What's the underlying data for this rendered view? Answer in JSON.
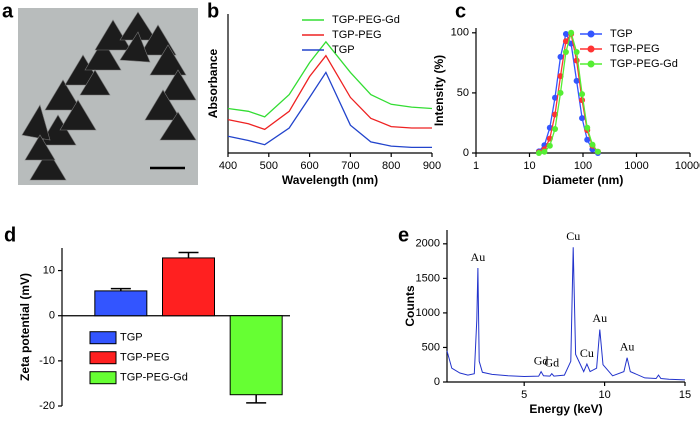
{
  "chart_data": [
    {
      "type": "image",
      "panel": "a"
    },
    {
      "type": "line",
      "panel": "b",
      "xlabel": "Wavelength (nm)",
      "ylabel": "Absorbance",
      "x": [
        400,
        450,
        490,
        550,
        600,
        640,
        700,
        750,
        800,
        850,
        900
      ],
      "xlim": [
        400,
        900
      ],
      "xticks": [
        400,
        500,
        600,
        700,
        800,
        900
      ],
      "ylim": [
        0,
        1
      ],
      "legend": "upper right",
      "series": [
        {
          "name": "TGP-PEG-Gd",
          "color": "#33dd33",
          "values": [
            0.32,
            0.3,
            0.26,
            0.42,
            0.65,
            0.8,
            0.58,
            0.42,
            0.35,
            0.33,
            0.32
          ]
        },
        {
          "name": "TGP-PEG",
          "color": "#ee2222",
          "values": [
            0.24,
            0.21,
            0.17,
            0.3,
            0.55,
            0.7,
            0.4,
            0.25,
            0.19,
            0.18,
            0.18
          ]
        },
        {
          "name": "TGP",
          "color": "#2244cc",
          "values": [
            0.12,
            0.09,
            0.06,
            0.18,
            0.4,
            0.58,
            0.2,
            0.08,
            0.05,
            0.04,
            0.04
          ]
        }
      ]
    },
    {
      "type": "scatter-line",
      "panel": "c",
      "xlabel": "Diameter (nm)",
      "ylabel": "Intensity (%)",
      "xscale": "log",
      "x": [
        15,
        19,
        24,
        30,
        38,
        48,
        60,
        76,
        96,
        120,
        150,
        190
      ],
      "xlim": [
        1,
        10000
      ],
      "xticks": [
        1,
        10,
        100,
        1000,
        10000
      ],
      "ylim": [
        0,
        104
      ],
      "yticks": [
        0,
        50,
        100
      ],
      "legend": "upper right",
      "series": [
        {
          "name": "TGP",
          "color": "#3355ff",
          "values": [
            1.4,
            6.5,
            21,
            46,
            80,
            99,
            91,
            60,
            29,
            11,
            3,
            0
          ]
        },
        {
          "name": "TGP-PEG",
          "color": "#ff3333",
          "values": [
            0.6,
            3,
            12,
            32,
            64,
            93,
            99,
            77,
            44,
            19,
            6,
            1
          ]
        },
        {
          "name": "TGP-PEG-Gd",
          "color": "#55ee33",
          "values": [
            0,
            1,
            6,
            20,
            50,
            84,
            100,
            84,
            49,
            21,
            7,
            1
          ]
        }
      ]
    },
    {
      "type": "bar",
      "panel": "d",
      "ylabel": "Zeta potential (mV)",
      "categories": [
        "TGP",
        "TGP-PEG",
        "TGP-PEG-Gd"
      ],
      "values": [
        5.5,
        12.8,
        -17.5
      ],
      "errors": [
        0.5,
        1.2,
        1.8
      ],
      "colors": [
        "#3355ff",
        "#ff2020",
        "#66ff33"
      ],
      "ylim": [
        -20,
        15
      ],
      "yticks": [
        -20,
        -10,
        0,
        10
      ],
      "legend": "lower left"
    },
    {
      "type": "spectrum",
      "panel": "e",
      "xlabel": "Energy (keV)",
      "ylabel": "Counts",
      "color": "#2233cc",
      "x": [
        0.2,
        0.5,
        1,
        1.5,
        1.9,
        2.05,
        2.12,
        2.2,
        2.4,
        3,
        4,
        5,
        5.9,
        6.05,
        6.2,
        6.6,
        6.72,
        6.85,
        7.5,
        7.9,
        8.05,
        8.2,
        8.7,
        8.9,
        9.1,
        9.5,
        9.7,
        9.9,
        10.5,
        11.2,
        11.4,
        11.6,
        12.5,
        13.2,
        13.35,
        13.5,
        14,
        15
      ],
      "values": [
        450,
        200,
        130,
        100,
        120,
        900,
        1650,
        300,
        140,
        110,
        90,
        80,
        85,
        150,
        90,
        85,
        120,
        85,
        100,
        300,
        1950,
        400,
        150,
        260,
        150,
        200,
        760,
        250,
        90,
        150,
        350,
        150,
        60,
        50,
        100,
        50,
        40,
        30
      ],
      "xlim": [
        0.2,
        15
      ],
      "xticks": [
        5,
        10,
        15
      ],
      "ylim": [
        0,
        2200
      ],
      "yticks": [
        0,
        500,
        1000,
        1500,
        2000
      ],
      "annotations": [
        {
          "text": "Au",
          "x": 2.12
        },
        {
          "text": "Gd",
          "x": 6.05
        },
        {
          "text": "Gd",
          "x": 6.72
        },
        {
          "text": "Cu",
          "x": 8.05
        },
        {
          "text": "Cu",
          "x": 8.9
        },
        {
          "text": "Au",
          "x": 9.7
        },
        {
          "text": "Au",
          "x": 11.4
        }
      ]
    }
  ]
}
